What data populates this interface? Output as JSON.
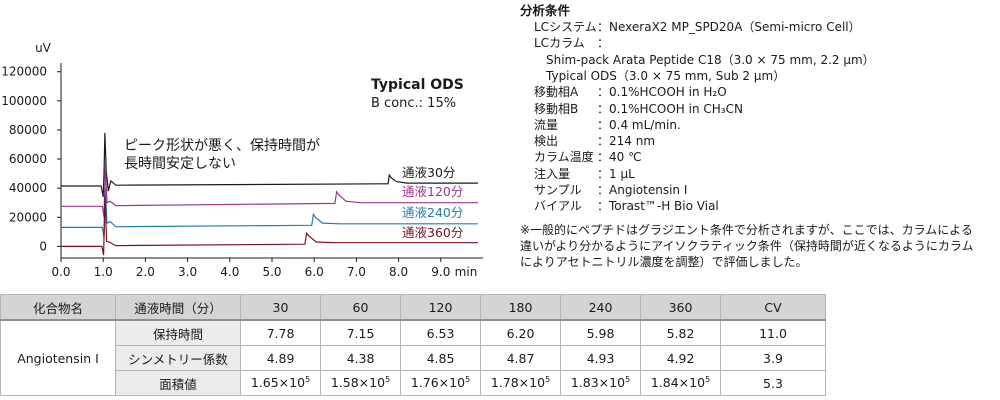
{
  "chart_data": {
    "type": "line",
    "ylabel": "uV",
    "xlabel": "min",
    "ylim": [
      -8000,
      126000
    ],
    "xlim": [
      0.0,
      10.0
    ],
    "y_ticks": [
      "120000",
      "100000",
      "80000",
      "60000",
      "40000",
      "20000",
      "0"
    ],
    "y_tick_values": [
      120000,
      100000,
      80000,
      60000,
      40000,
      20000,
      0
    ],
    "x_ticks": [
      "0.0",
      "1.0",
      "2.0",
      "3.0",
      "4.0",
      "5.0",
      "6.0",
      "7.0",
      "8.0",
      "9.0"
    ],
    "x_tick_values": [
      0,
      1,
      2,
      3,
      4,
      5,
      6,
      7,
      8,
      9
    ],
    "legend_title": "Typical ODS",
    "legend_subtitle": "B conc.: 15%",
    "annotation_line1": "ピーク形状が悪く、保持時間が",
    "annotation_line2": "長時間安定しない",
    "series": [
      {
        "name": "通液30分",
        "color": "#1a1a1a",
        "baseline": 41500,
        "x": [
          0,
          0.95,
          1.0,
          1.02,
          1.04,
          1.07,
          1.12,
          1.18,
          1.3,
          7.75,
          7.78,
          7.83,
          7.95,
          8.2,
          10.3
        ],
        "y": [
          41500,
          41500,
          34000,
          50000,
          78000,
          52000,
          38000,
          45000,
          42000,
          43000,
          49000,
          47000,
          44500,
          43500,
          43500
        ]
      },
      {
        "name": "通液120分",
        "color": "#a03590",
        "baseline": 27500,
        "x": [
          0,
          0.98,
          1.02,
          1.05,
          1.09,
          1.16,
          1.3,
          6.49,
          6.53,
          6.58,
          6.75,
          7.1,
          10.3
        ],
        "y": [
          27500,
          27500,
          20000,
          57000,
          30000,
          31000,
          28000,
          29500,
          37500,
          35500,
          31000,
          30000,
          30000
        ]
      },
      {
        "name": "通液240分",
        "color": "#1f7fb0",
        "baseline": 13000,
        "x": [
          0,
          0.98,
          1.02,
          1.05,
          1.09,
          1.16,
          1.3,
          5.94,
          5.98,
          6.03,
          6.2,
          6.6,
          10.3
        ],
        "y": [
          13000,
          13000,
          6000,
          40000,
          16000,
          17000,
          13500,
          14500,
          22000,
          20000,
          16000,
          15500,
          15500
        ]
      },
      {
        "name": "通液360分",
        "color": "#7a1020",
        "baseline": 0,
        "x": [
          0,
          0.97,
          1.01,
          1.04,
          1.08,
          1.14,
          1.3,
          5.78,
          5.82,
          5.88,
          6.05,
          6.5,
          10.3
        ],
        "y": [
          0,
          0,
          -6000,
          35000,
          3500,
          3000,
          500,
          1500,
          9000,
          7000,
          3000,
          2500,
          2500
        ]
      }
    ]
  },
  "conditions": {
    "title": "分析条件",
    "rows": [
      {
        "label": "LCシステム",
        "sep": "：",
        "value": "NexeraX2 MP_SPD20A（Semi-micro Cell）",
        "indent": 1
      },
      {
        "label": "LCカラム",
        "sep": "：",
        "value": "",
        "indent": 1
      },
      {
        "label": "",
        "sep": "",
        "value": "Shim-pack Arata Peptide C18（3.0 × 75 mm, 2.2 µm）",
        "indent": 2
      },
      {
        "label": "",
        "sep": "",
        "value": "Typical ODS（3.0 × 75 mm, Sub 2 µm）",
        "indent": 2
      },
      {
        "label": "移動相A",
        "sep": "：",
        "value": "0.1%HCOOH in H₂O",
        "indent": 1
      },
      {
        "label": "移動相B",
        "sep": "：",
        "value": "0.1%HCOOH in CH₃CN",
        "indent": 1
      },
      {
        "label": "流量",
        "sep": "：",
        "value": "0.4 mL/min.",
        "indent": 1
      },
      {
        "label": "検出",
        "sep": "：",
        "value": "214 nm",
        "indent": 1
      },
      {
        "label": "カラム温度",
        "sep": "：",
        "value": "40 ℃",
        "indent": 1
      },
      {
        "label": "注入量",
        "sep": "：",
        "value": "1 µL",
        "indent": 1
      },
      {
        "label": "サンプル",
        "sep": "：",
        "value": "Angiotensin Ⅰ",
        "indent": 1
      },
      {
        "label": "バイアル",
        "sep": "：",
        "value": "Torast™-H Bio Vial",
        "indent": 1
      }
    ]
  },
  "note": {
    "line1": "※一般的にペプチドはグラジエント条件で分析されますが、ここでは、カラムによる",
    "line2": "違いがより分かるようにアイソクラティック条件（保持時間が近くなるようにカラム",
    "line3": "によりアセトニトリル濃度を調整）で評価しました。"
  },
  "table": {
    "headers": [
      "化合物名",
      "通液時間（分）",
      "30",
      "60",
      "120",
      "180",
      "240",
      "360",
      "CV"
    ],
    "compound": "Angiotensin Ⅰ",
    "rows": [
      {
        "label": "保持時間",
        "cells": [
          "7.78",
          "7.15",
          "6.53",
          "6.20",
          "5.98",
          "5.82",
          "11.0"
        ]
      },
      {
        "label": "シンメトリー係数",
        "cells": [
          "4.89",
          "4.38",
          "4.85",
          "4.87",
          "4.93",
          "4.92",
          "3.9"
        ]
      },
      {
        "label": "面積値",
        "cells": [
          "1.65×10",
          "1.58×10",
          "1.76×10",
          "1.78×10",
          "1.83×10",
          "1.84×10",
          "5.3"
        ],
        "exp": "5"
      }
    ]
  }
}
